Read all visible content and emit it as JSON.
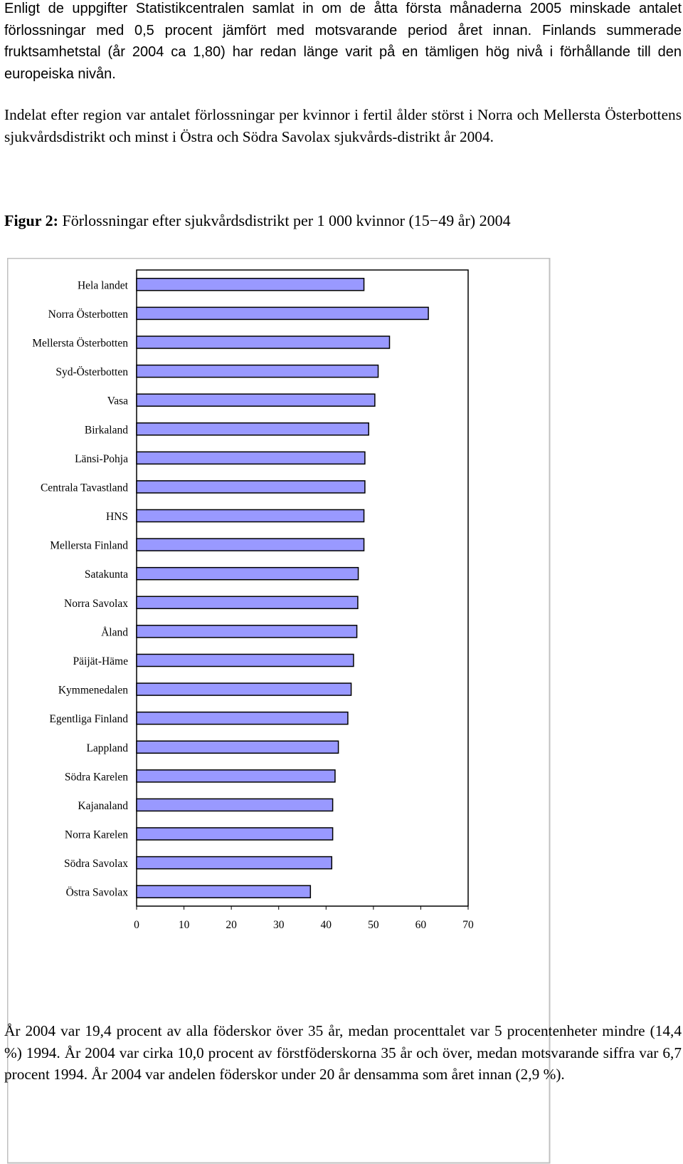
{
  "paragraphs": {
    "p1": "Enligt de uppgifter Statistikcentralen samlat in om de åtta första månaderna 2005 minskade antalet förlossningar med 0,5 procent jämfört med motsvarande period året innan. Finlands summerade fruktsamhetstal (år 2004 ca 1,80) har redan länge varit på en tämligen hög nivå i förhållande till den europeiska nivån.",
    "p2": "Indelat efter region var antalet förlossningar per kvinnor i fertil ålder störst i Norra och Mellersta Österbottens sjukvårdsdistrikt och minst i Östra och Södra Savolax sjukvårds-distrikt år 2004.",
    "p3": "År 2004 var 19,4 procent av alla föderskor över 35 år, medan procenttalet var 5 procentenheter mindre (14,4 %) 1994. År 2004 var cirka 10,0 procent av förstföderskorna 35 år och över, medan motsvarande siffra var 6,7 procent 1994. År 2004 var andelen föderskor under 20 år densamma som året innan (2,9 %)."
  },
  "figure": {
    "label": "Figur 2:",
    "caption": "Förlossningar efter sjukvårdsdistrikt per 1 000 kvinnor (15−49 år) 2004"
  },
  "chart_data": {
    "type": "bar",
    "orientation": "horizontal",
    "title": "",
    "xlabel": "",
    "ylabel": "",
    "xlim": [
      0,
      70
    ],
    "x_ticks": [
      "0",
      "10",
      "20",
      "30",
      "40",
      "50",
      "60",
      "70"
    ],
    "grid": false,
    "colors": {
      "bar_fill": "#9999ff",
      "bar_stroke": "#000000",
      "plot_bg": "#ffffff"
    },
    "categories": [
      "Hela landet",
      "Norra Österbotten",
      "Mellersta Österbotten",
      "Syd-Österbotten",
      "Vasa",
      "Birkaland",
      "Länsi-Pohja",
      "Centrala Tavastland",
      "HNS",
      "Mellersta Finland",
      "Satakunta",
      "Norra Savolax",
      "Åland",
      "Päijät-Häme",
      "Kymmenedalen",
      "Egentliga Finland",
      "Lappland",
      "Södra Karelen",
      "Kajanaland",
      "Norra Karelen",
      "Södra Savolax",
      "Östra Savolax"
    ],
    "values": [
      48.0,
      61.6,
      53.4,
      51.0,
      50.3,
      49.0,
      48.2,
      48.2,
      48.0,
      48.0,
      46.8,
      46.7,
      46.5,
      45.8,
      45.3,
      44.6,
      42.6,
      41.9,
      41.4,
      41.4,
      41.2,
      36.7
    ]
  }
}
